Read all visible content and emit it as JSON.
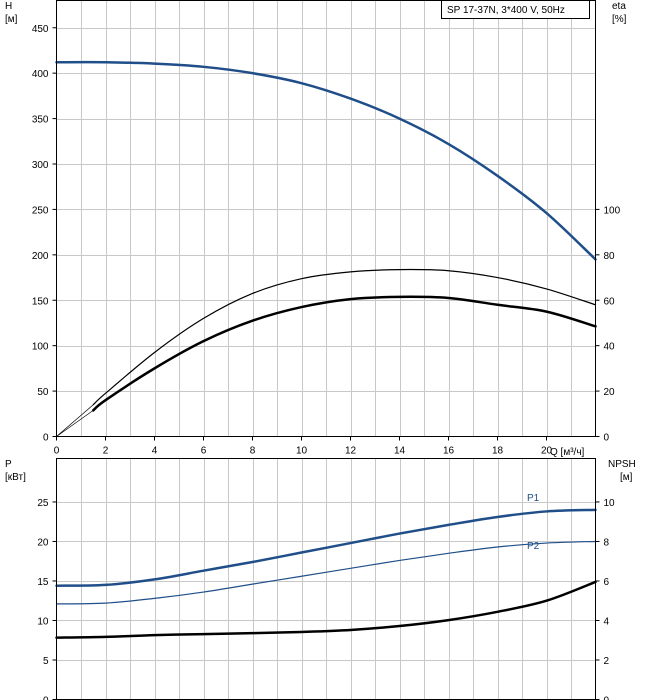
{
  "model_label": "SP 17-37N, 3*400 V, 50Hz",
  "colors": {
    "primary": "#1f4e89",
    "black": "#000000",
    "grid": "#c8c8c8"
  },
  "chart_data": [
    {
      "type": "line",
      "xlabel": "Q [м³/ч]",
      "xlim": [
        0,
        22
      ],
      "x_ticks": [
        0,
        2,
        4,
        6,
        8,
        10,
        12,
        14,
        16,
        18,
        20
      ],
      "left_axis": {
        "label": "H",
        "unit": "[м]",
        "ylim": [
          0,
          480
        ],
        "ticks": [
          0,
          50,
          100,
          150,
          200,
          250,
          300,
          350,
          400,
          450
        ]
      },
      "right_axis": {
        "label": "eta",
        "unit": "[%]",
        "ylim": [
          0,
          192
        ],
        "ticks": [
          0,
          20,
          40,
          60,
          80,
          100
        ]
      },
      "grid": true,
      "series": [
        {
          "axis": "left",
          "color": "#1f4e89",
          "width": 2.5,
          "points": [
            [
              0,
              412
            ],
            [
              2,
              412
            ],
            [
              4,
              410.5
            ],
            [
              6,
              407
            ],
            [
              8,
              400
            ],
            [
              10,
              389
            ],
            [
              12,
              372
            ],
            [
              14,
              350
            ],
            [
              16,
              322
            ],
            [
              18,
              287
            ],
            [
              20,
              246
            ],
            [
              22,
              195
            ]
          ]
        },
        {
          "axis": "right",
          "color": "#000000",
          "width": 1.2,
          "points": [
            [
              1.5,
              14
            ],
            [
              2,
              19
            ],
            [
              4,
              37
            ],
            [
              6,
              52
            ],
            [
              8,
              63
            ],
            [
              10,
              69.5
            ],
            [
              12,
              72.5
            ],
            [
              14,
              73.5
            ],
            [
              16,
              73
            ],
            [
              18,
              70
            ],
            [
              20,
              65
            ],
            [
              22,
              58
            ]
          ]
        },
        {
          "axis": "right",
          "color": "#000000",
          "width": 2.5,
          "points": [
            [
              1.5,
              11.5
            ],
            [
              2,
              16
            ],
            [
              4,
              30
            ],
            [
              6,
              42
            ],
            [
              8,
              51
            ],
            [
              10,
              57
            ],
            [
              12,
              60.5
            ],
            [
              14,
              61.5
            ],
            [
              16,
              61
            ],
            [
              18,
              58
            ],
            [
              20,
              55
            ],
            [
              22,
              48.5
            ]
          ]
        },
        {
          "axis": "right",
          "color": "#000000",
          "width": 0.7,
          "points": [
            [
              0,
              0
            ],
            [
              1.5,
              11.5
            ]
          ]
        },
        {
          "axis": "right",
          "color": "#000000",
          "width": 0.7,
          "points": [
            [
              0,
              0
            ],
            [
              1.5,
              14
            ]
          ]
        }
      ]
    },
    {
      "type": "line",
      "xlim": [
        0,
        22
      ],
      "left_axis": {
        "label": "P",
        "unit": "[кВт]",
        "ylim": [
          0,
          30.5
        ],
        "ticks": [
          0,
          5,
          10,
          15,
          20,
          25
        ]
      },
      "right_axis": {
        "label": "NPSH",
        "unit": "[м]",
        "ylim": [
          0,
          12.2
        ],
        "ticks": [
          0,
          2,
          4,
          6,
          8,
          10
        ]
      },
      "grid": true,
      "series": [
        {
          "name": "P1",
          "axis": "left",
          "color": "#1f4e89",
          "width": 2.5,
          "points": [
            [
              0,
              14.4
            ],
            [
              2,
              14.5
            ],
            [
              4,
              15.2
            ],
            [
              6,
              16.3
            ],
            [
              8,
              17.4
            ],
            [
              10,
              18.6
            ],
            [
              12,
              19.8
            ],
            [
              14,
              21.0
            ],
            [
              16,
              22.1
            ],
            [
              18,
              23.1
            ],
            [
              20,
              23.8
            ],
            [
              22,
              24.0
            ]
          ]
        },
        {
          "name": "P2",
          "axis": "left",
          "color": "#1f4e89",
          "width": 1.2,
          "points": [
            [
              0,
              12.1
            ],
            [
              2,
              12.2
            ],
            [
              4,
              12.8
            ],
            [
              6,
              13.6
            ],
            [
              8,
              14.6
            ],
            [
              10,
              15.6
            ],
            [
              12,
              16.6
            ],
            [
              14,
              17.6
            ],
            [
              16,
              18.5
            ],
            [
              18,
              19.3
            ],
            [
              20,
              19.8
            ],
            [
              22,
              20.0
            ]
          ]
        },
        {
          "axis": "right",
          "color": "#000000",
          "width": 2.5,
          "points": [
            [
              0,
              3.13
            ],
            [
              2,
              3.17
            ],
            [
              4,
              3.26
            ],
            [
              6,
              3.31
            ],
            [
              8,
              3.36
            ],
            [
              10,
              3.42
            ],
            [
              12,
              3.52
            ],
            [
              14,
              3.72
            ],
            [
              16,
              4.02
            ],
            [
              18,
              4.44
            ],
            [
              20,
              5.0
            ],
            [
              22,
              5.95
            ]
          ]
        }
      ]
    }
  ]
}
